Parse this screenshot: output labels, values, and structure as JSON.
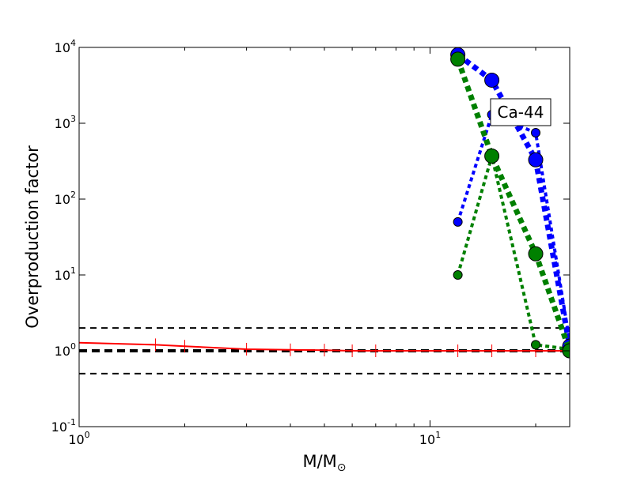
{
  "chart_data": {
    "type": "line",
    "title": "",
    "xlabel": "M/M",
    "xlabel_symbol": "⊙",
    "ylabel": "Overproduction factor",
    "xscale": "log",
    "yscale": "log",
    "xlim": [
      1,
      25
    ],
    "ylim": [
      0.1,
      10000
    ],
    "x_ticks": [
      {
        "base": "10",
        "exp": "0",
        "value": 1
      },
      {
        "base": "10",
        "exp": "1",
        "value": 10
      }
    ],
    "y_ticks": [
      {
        "base": "10",
        "exp": "-1",
        "value": 0.1
      },
      {
        "base": "10",
        "exp": "0",
        "value": 1
      },
      {
        "base": "10",
        "exp": "1",
        "value": 10
      },
      {
        "base": "10",
        "exp": "2",
        "value": 100
      },
      {
        "base": "10",
        "exp": "3",
        "value": 1000
      },
      {
        "base": "10",
        "exp": "4",
        "value": 10000
      }
    ],
    "annotation": "Ca-44",
    "reference_lines": [
      {
        "y": 2,
        "color": "#000000",
        "style": "dashed",
        "width": 2
      },
      {
        "y": 1,
        "color": "#000000",
        "style": "dashed",
        "width": 4
      },
      {
        "y": 0.5,
        "color": "#000000",
        "style": "dashed",
        "width": 2
      }
    ],
    "series": [
      {
        "color": "#ff0000",
        "style": "solid",
        "width": 2,
        "marker": "tick",
        "x": [
          1,
          1.65,
          2,
          3,
          4,
          5,
          6,
          7,
          12,
          15,
          20,
          25
        ],
        "y": [
          1.28,
          1.2,
          1.15,
          1.05,
          1.03,
          1.02,
          1.0,
          1.0,
          1.0,
          1.0,
          1.0,
          1.0
        ]
      },
      {
        "color": "#0000ff",
        "style": "dotted",
        "width": 4,
        "marker": "circle",
        "x": [
          12,
          15,
          20,
          25
        ],
        "y": [
          50,
          1300,
          750,
          1.3
        ]
      },
      {
        "color": "#008000",
        "style": "dotted",
        "width": 4,
        "marker": "circle",
        "x": [
          12,
          15,
          20,
          25
        ],
        "y": [
          10,
          370,
          1.2,
          1.05
        ]
      },
      {
        "color": "#0000ff",
        "style": "dotted",
        "width": 7,
        "marker": "circle-large",
        "x": [
          12,
          15,
          20,
          25
        ],
        "y": [
          8000,
          3700,
          330,
          1.15
        ]
      },
      {
        "color": "#008000",
        "style": "dotted",
        "width": 7,
        "marker": "circle-large",
        "x": [
          12,
          15,
          20,
          25
        ],
        "y": [
          7000,
          370,
          19,
          1.0
        ]
      }
    ]
  }
}
